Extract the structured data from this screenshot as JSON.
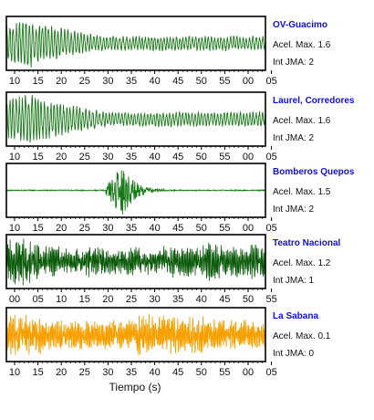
{
  "chart_data": {
    "type": "line",
    "xlabel": "Tiempo (s)",
    "panels": [
      {
        "station": "OV-Guacimo",
        "accel_label": "Acel. Max. 1.6",
        "jma_label": "Int JMA: 2",
        "color": "#1a7a1a",
        "tick_labels": [
          "10",
          "15",
          "20",
          "25",
          "30",
          "35",
          "40",
          "45",
          "50",
          "55",
          "00",
          "05"
        ],
        "pattern": "early-decay",
        "peak_time": 13,
        "time_range": [
          8,
          68
        ]
      },
      {
        "station": "Laurel, Corredores",
        "accel_label": "Acel. Max. 1.6",
        "jma_label": "Int JMA: 2",
        "color": "#1a7a1a",
        "tick_labels": [
          "10",
          "15",
          "20",
          "25",
          "30",
          "35",
          "40",
          "45",
          "50",
          "55",
          "00",
          "05"
        ],
        "pattern": "early-decay",
        "peak_time": 14,
        "time_range": [
          8,
          68
        ]
      },
      {
        "station": "Bomberos Quepos",
        "accel_label": "Acel. Max. 1.5",
        "jma_label": "Int JMA: 2",
        "color": "#1a7a1a",
        "tick_labels": [
          "10",
          "15",
          "20",
          "25",
          "30",
          "35",
          "40",
          "45",
          "50",
          "55",
          "00",
          "05"
        ],
        "pattern": "impulse",
        "peak_time": 35,
        "time_range": [
          8,
          68
        ]
      },
      {
        "station": "Teatro Nacional",
        "accel_label": "Acel. Max. 1.2",
        "jma_label": "Int JMA: 1",
        "color": "#0a5a0a",
        "tick_labels": [
          "00",
          "05",
          "10",
          "15",
          "20",
          "25",
          "30",
          "35",
          "40",
          "45",
          "50",
          "55"
        ],
        "pattern": "dense",
        "peak_time": 2,
        "time_range": [
          57,
          117
        ]
      },
      {
        "station": "La Sabana",
        "accel_label": "Acel. Max. 0.1",
        "jma_label": "Int JMA: 0",
        "color": "#f5a000",
        "tick_labels": [
          "10",
          "15",
          "20",
          "25",
          "30",
          "35",
          "40",
          "45",
          "50",
          "55",
          "00",
          "05"
        ],
        "pattern": "steady",
        "peak_time": 13,
        "time_range": [
          8,
          68
        ]
      }
    ]
  }
}
